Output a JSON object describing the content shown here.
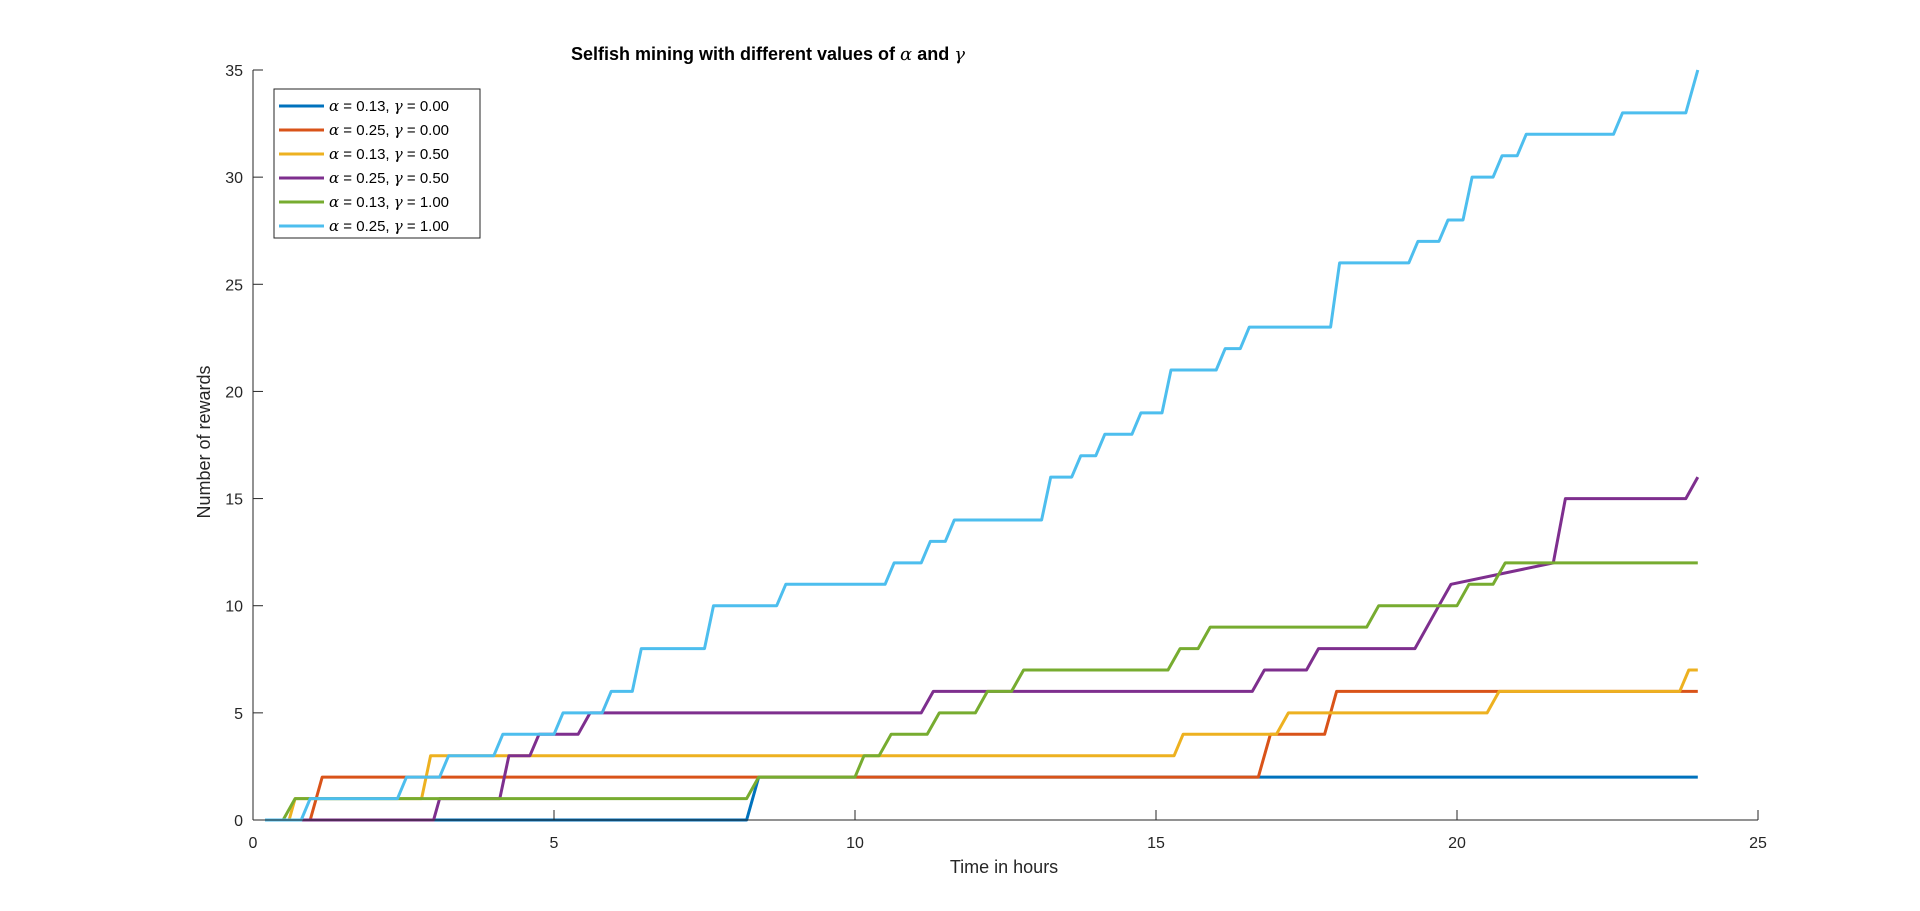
{
  "chart_data": {
    "type": "line",
    "title_prefix": "Selfish mining with different values of",
    "title_alpha": "α",
    "title_and": "and",
    "title_gamma": "γ",
    "xlabel": "Time in hours",
    "ylabel": "Number of rewards",
    "xlim": [
      0,
      25
    ],
    "ylim": [
      0,
      35
    ],
    "xticks": [
      "0",
      "5",
      "10",
      "15",
      "20",
      "25"
    ],
    "yticks": [
      "0",
      "5",
      "10",
      "15",
      "20",
      "25",
      "30",
      "35"
    ],
    "grid": false,
    "legend_position": "top-left",
    "step_plot": true,
    "series": [
      {
        "name": "α = 0.13, γ = 0.00",
        "alpha_sym": "α",
        "alpha_val": "= 0.13,",
        "gamma_sym": "γ",
        "gamma_val": "= 0.00",
        "color": "#0072BD",
        "points": [
          [
            0.2,
            0
          ],
          [
            8.2,
            0
          ],
          [
            8.4,
            2
          ],
          [
            24,
            2
          ]
        ]
      },
      {
        "name": "α = 0.25, γ = 0.00",
        "alpha_sym": "α",
        "alpha_val": "= 0.25,",
        "gamma_sym": "γ",
        "gamma_val": "= 0.00",
        "color": "#D95319",
        "points": [
          [
            0.2,
            0
          ],
          [
            0.95,
            0
          ],
          [
            1.15,
            2
          ],
          [
            16.7,
            2
          ],
          [
            16.9,
            4
          ],
          [
            17.8,
            4
          ],
          [
            18.0,
            6
          ],
          [
            24,
            6
          ]
        ]
      },
      {
        "name": "α = 0.13, γ = 0.50",
        "alpha_sym": "α",
        "alpha_val": "= 0.13,",
        "gamma_sym": "γ",
        "gamma_val": "= 0.50",
        "color": "#EDB120",
        "points": [
          [
            0.2,
            0
          ],
          [
            0.6,
            0
          ],
          [
            0.7,
            1
          ],
          [
            2.8,
            1
          ],
          [
            2.95,
            3
          ],
          [
            15.3,
            3
          ],
          [
            15.45,
            4
          ],
          [
            16.4,
            4
          ],
          [
            16.55,
            4
          ],
          [
            17.0,
            4
          ],
          [
            17.2,
            5
          ],
          [
            20.5,
            5
          ],
          [
            20.7,
            6
          ],
          [
            23.7,
            6
          ],
          [
            23.85,
            7
          ],
          [
            24,
            7
          ]
        ]
      },
      {
        "name": "α = 0.25, γ = 0.50",
        "alpha_sym": "α",
        "alpha_val": "= 0.25,",
        "gamma_sym": "γ",
        "gamma_val": "= 0.50",
        "color": "#7E2F8E",
        "points": [
          [
            0.2,
            0
          ],
          [
            3.0,
            0
          ],
          [
            3.1,
            1
          ],
          [
            4.1,
            1
          ],
          [
            4.25,
            3
          ],
          [
            4.6,
            3
          ],
          [
            4.75,
            4
          ],
          [
            5.4,
            4
          ],
          [
            5.6,
            5
          ],
          [
            11.1,
            5
          ],
          [
            11.3,
            6
          ],
          [
            16.6,
            6
          ],
          [
            16.8,
            7
          ],
          [
            17.5,
            7
          ],
          [
            17.7,
            8
          ],
          [
            19.3,
            8
          ],
          [
            19.7,
            10
          ],
          [
            19.9,
            11
          ],
          [
            21.6,
            12
          ],
          [
            21.8,
            15
          ],
          [
            23.8,
            15
          ],
          [
            24,
            16
          ]
        ]
      },
      {
        "name": "α = 0.13, γ = 1.00",
        "alpha_sym": "α",
        "alpha_val": "= 0.13,",
        "gamma_sym": "γ",
        "gamma_val": "= 1.00",
        "color": "#77AC30",
        "points": [
          [
            0.2,
            0
          ],
          [
            0.5,
            0
          ],
          [
            0.7,
            1
          ],
          [
            8.2,
            1
          ],
          [
            8.4,
            2
          ],
          [
            10.0,
            2
          ],
          [
            10.15,
            3
          ],
          [
            10.4,
            3
          ],
          [
            10.6,
            4
          ],
          [
            11.2,
            4
          ],
          [
            11.4,
            5
          ],
          [
            12.0,
            5
          ],
          [
            12.2,
            6
          ],
          [
            12.6,
            6
          ],
          [
            12.8,
            7
          ],
          [
            15.2,
            7
          ],
          [
            15.4,
            8
          ],
          [
            15.7,
            8
          ],
          [
            15.9,
            9
          ],
          [
            18.5,
            9
          ],
          [
            18.7,
            10
          ],
          [
            20.0,
            10
          ],
          [
            20.2,
            11
          ],
          [
            20.6,
            11
          ],
          [
            20.8,
            12
          ],
          [
            24,
            12
          ]
        ]
      },
      {
        "name": "α = 0.25, γ = 1.00",
        "alpha_sym": "α",
        "alpha_val": "= 0.25,",
        "gamma_sym": "γ",
        "gamma_val": "= 1.00",
        "color": "#4DBEEE",
        "points": [
          [
            0.2,
            0
          ],
          [
            0.8,
            0
          ],
          [
            0.95,
            1
          ],
          [
            2.4,
            1
          ],
          [
            2.55,
            2
          ],
          [
            3.1,
            2
          ],
          [
            3.25,
            3
          ],
          [
            4.0,
            3
          ],
          [
            4.15,
            4
          ],
          [
            5.0,
            4
          ],
          [
            5.15,
            5
          ],
          [
            5.8,
            5
          ],
          [
            5.95,
            6
          ],
          [
            6.3,
            6
          ],
          [
            6.45,
            8
          ],
          [
            7.5,
            8
          ],
          [
            7.65,
            10
          ],
          [
            8.7,
            10
          ],
          [
            8.85,
            11
          ],
          [
            10.5,
            11
          ],
          [
            10.65,
            12
          ],
          [
            11.1,
            12
          ],
          [
            11.25,
            13
          ],
          [
            11.5,
            13
          ],
          [
            11.65,
            14
          ],
          [
            13.1,
            14
          ],
          [
            13.25,
            16
          ],
          [
            13.6,
            16
          ],
          [
            13.75,
            17
          ],
          [
            14.0,
            17
          ],
          [
            14.15,
            18
          ],
          [
            14.6,
            18
          ],
          [
            14.75,
            19
          ],
          [
            15.1,
            19
          ],
          [
            15.25,
            21
          ],
          [
            16.0,
            21
          ],
          [
            16.15,
            22
          ],
          [
            16.4,
            22
          ],
          [
            16.55,
            23
          ],
          [
            17.9,
            23
          ],
          [
            18.05,
            26
          ],
          [
            19.2,
            26
          ],
          [
            19.35,
            27
          ],
          [
            19.7,
            27
          ],
          [
            19.85,
            28
          ],
          [
            20.1,
            28
          ],
          [
            20.25,
            30
          ],
          [
            20.6,
            30
          ],
          [
            20.75,
            31
          ],
          [
            21.0,
            31
          ],
          [
            21.15,
            32
          ],
          [
            22.6,
            32
          ],
          [
            22.75,
            33
          ],
          [
            23.8,
            33
          ],
          [
            24,
            35
          ]
        ]
      }
    ]
  }
}
